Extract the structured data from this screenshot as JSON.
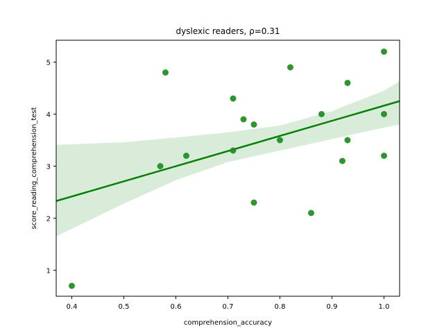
{
  "chart_data": {
    "type": "scatter",
    "title": "dyslexic readers, ρ=0.31",
    "xlabel": "comprehension_accuracy",
    "ylabel": "score_reading_comprehension_test",
    "xlim": [
      0.37,
      1.03
    ],
    "ylim": [
      0.5,
      5.42
    ],
    "x_ticks": [
      0.4,
      0.5,
      0.6,
      0.7,
      0.8,
      0.9,
      1.0
    ],
    "x_tick_labels": [
      "0.4",
      "0.5",
      "0.6",
      "0.7",
      "0.8",
      "0.9",
      "1.0"
    ],
    "y_ticks": [
      1,
      2,
      3,
      4,
      5
    ],
    "y_tick_labels": [
      "1",
      "2",
      "3",
      "4",
      "5"
    ],
    "grid": false,
    "colors": {
      "points": "#1a8a1a",
      "line": "#008000",
      "band": "#d9ecd9"
    },
    "points": [
      {
        "x": 0.4,
        "y": 0.7
      },
      {
        "x": 0.57,
        "y": 3.0
      },
      {
        "x": 0.58,
        "y": 4.8
      },
      {
        "x": 0.62,
        "y": 3.2
      },
      {
        "x": 0.71,
        "y": 4.3
      },
      {
        "x": 0.71,
        "y": 3.3
      },
      {
        "x": 0.73,
        "y": 3.9
      },
      {
        "x": 0.75,
        "y": 3.8
      },
      {
        "x": 0.75,
        "y": 2.3
      },
      {
        "x": 0.8,
        "y": 3.5
      },
      {
        "x": 0.82,
        "y": 4.9
      },
      {
        "x": 0.86,
        "y": 2.1
      },
      {
        "x": 0.88,
        "y": 4.0
      },
      {
        "x": 0.92,
        "y": 3.1
      },
      {
        "x": 0.93,
        "y": 4.6
      },
      {
        "x": 0.93,
        "y": 3.5
      },
      {
        "x": 1.0,
        "y": 5.2
      },
      {
        "x": 1.0,
        "y": 4.0
      },
      {
        "x": 1.0,
        "y": 3.2
      }
    ],
    "regression": {
      "line": [
        {
          "x": 0.37,
          "y": 2.33
        },
        {
          "x": 1.03,
          "y": 4.25
        }
      ],
      "ci_upper": [
        {
          "x": 0.37,
          "y": 3.41
        },
        {
          "x": 0.5,
          "y": 3.46
        },
        {
          "x": 0.6,
          "y": 3.55
        },
        {
          "x": 0.7,
          "y": 3.65
        },
        {
          "x": 0.8,
          "y": 3.78
        },
        {
          "x": 0.9,
          "y": 4.06
        },
        {
          "x": 1.0,
          "y": 4.45
        },
        {
          "x": 1.03,
          "y": 4.63
        }
      ],
      "ci_lower": [
        {
          "x": 0.37,
          "y": 1.65
        },
        {
          "x": 0.5,
          "y": 2.28
        },
        {
          "x": 0.6,
          "y": 2.73
        },
        {
          "x": 0.7,
          "y": 3.08
        },
        {
          "x": 0.8,
          "y": 3.3
        },
        {
          "x": 0.9,
          "y": 3.52
        },
        {
          "x": 1.0,
          "y": 3.74
        },
        {
          "x": 1.03,
          "y": 3.8
        }
      ]
    }
  }
}
